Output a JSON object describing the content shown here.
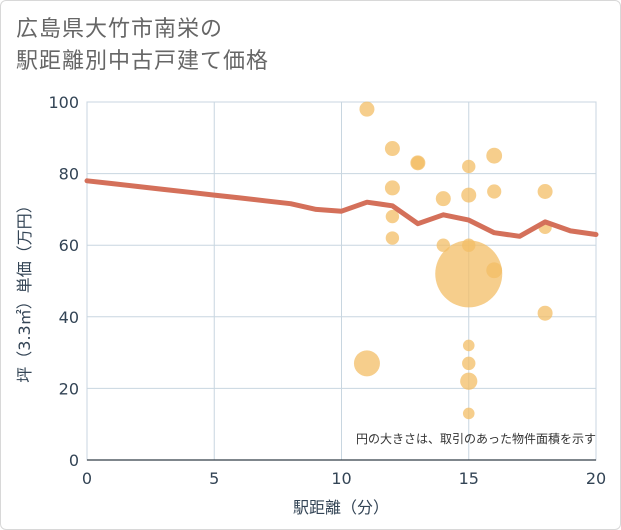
{
  "chart_data": {
    "type": "scatter",
    "title_line1": "広島県大竹市南栄の",
    "title_line2": "駅距離別中古戸建て価格",
    "xlabel": "駅距離（分）",
    "ylabel": "坪（3.3㎡）単価（万円）",
    "xlim": [
      0,
      20
    ],
    "ylim": [
      0,
      100
    ],
    "xticks": [
      0,
      5,
      10,
      15,
      20
    ],
    "yticks": [
      0,
      20,
      40,
      60,
      80,
      100
    ],
    "note": "円の大きさは、取引のあった物件面積を示す",
    "colors": {
      "point": "#f3bd66",
      "line": "#d4705a",
      "grid": "#c8d6e0",
      "plot_border": "#c8d0d8"
    },
    "points": [
      {
        "x": 11,
        "y": 98,
        "size": 1
      },
      {
        "x": 11,
        "y": 27,
        "size": 3
      },
      {
        "x": 12,
        "y": 87,
        "size": 1
      },
      {
        "x": 12,
        "y": 76,
        "size": 1
      },
      {
        "x": 12,
        "y": 68,
        "size": 0.8
      },
      {
        "x": 12,
        "y": 62,
        "size": 0.8
      },
      {
        "x": 13,
        "y": 83,
        "size": 1
      },
      {
        "x": 13,
        "y": 83,
        "size": 0.8
      },
      {
        "x": 14,
        "y": 73,
        "size": 1
      },
      {
        "x": 14,
        "y": 60,
        "size": 0.8
      },
      {
        "x": 15,
        "y": 82,
        "size": 0.8
      },
      {
        "x": 15,
        "y": 74,
        "size": 1
      },
      {
        "x": 15,
        "y": 60,
        "size": 0.8
      },
      {
        "x": 15,
        "y": 52,
        "size": 20
      },
      {
        "x": 15,
        "y": 32,
        "size": 0.6
      },
      {
        "x": 15,
        "y": 27,
        "size": 0.8
      },
      {
        "x": 15,
        "y": 22,
        "size": 1.3
      },
      {
        "x": 15,
        "y": 13,
        "size": 0.6
      },
      {
        "x": 16,
        "y": 85,
        "size": 1.1
      },
      {
        "x": 16,
        "y": 75,
        "size": 0.9
      },
      {
        "x": 16,
        "y": 53,
        "size": 1.1
      },
      {
        "x": 18,
        "y": 75,
        "size": 1
      },
      {
        "x": 18,
        "y": 65,
        "size": 0.8
      },
      {
        "x": 18,
        "y": 41,
        "size": 1
      }
    ],
    "trend": {
      "x": [
        0,
        1,
        2,
        3,
        4,
        5,
        6,
        7,
        8,
        9,
        10,
        11,
        12,
        13,
        14,
        15,
        16,
        17,
        18,
        19,
        20
      ],
      "y": [
        78,
        77.2,
        76.4,
        75.6,
        74.8,
        74,
        73.2,
        72.4,
        71.6,
        70,
        69.5,
        72,
        71,
        66,
        68.5,
        67,
        63.5,
        62.5,
        66.5,
        64,
        63
      ]
    }
  }
}
